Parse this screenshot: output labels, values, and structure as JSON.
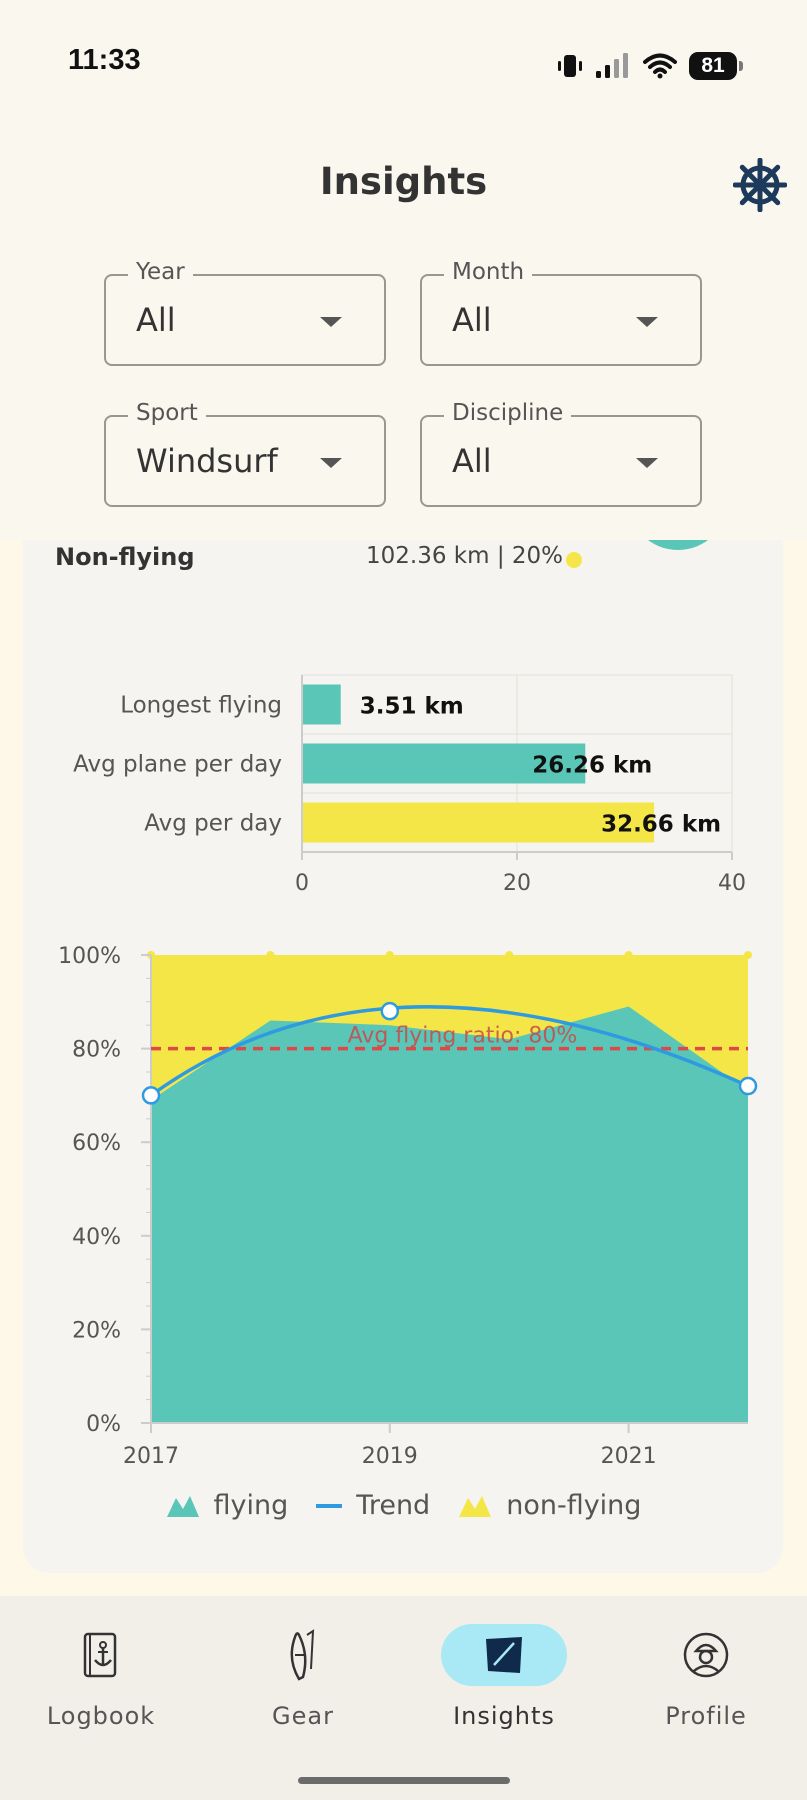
{
  "status_bar": {
    "time": "11:33",
    "battery": "81"
  },
  "header": {
    "title": "Insights",
    "settings_icon": "helm-icon"
  },
  "filters": [
    {
      "label": "Year",
      "value": "All"
    },
    {
      "label": "Month",
      "value": "All"
    },
    {
      "label": "Sport",
      "value": "Windsurf"
    },
    {
      "label": "Discipline",
      "value": "All"
    }
  ],
  "summary": {
    "nonflying_label": "Non-flying",
    "nonflying_value": "102.36 km | 20%"
  },
  "colors": {
    "flying": "#5AC6B8",
    "non_flying": "#F5E648",
    "trend": "#2E9BE0",
    "avg_line": "#E04848",
    "background": "#FAF8EE"
  },
  "chart_data": [
    {
      "type": "bar",
      "orientation": "horizontal",
      "categories": [
        "Longest flying",
        "Avg plane per day",
        "Avg per day"
      ],
      "values": [
        3.51,
        26.26,
        32.66
      ],
      "data_labels": [
        "3.51 km",
        "26.26 km",
        "32.66 km"
      ],
      "bar_colors": [
        "#5AC6B8",
        "#5AC6B8",
        "#F5E648"
      ],
      "xlim": [
        0,
        40
      ],
      "x_ticks": [
        "0",
        "20",
        "40"
      ],
      "grid": true
    },
    {
      "type": "area",
      "stacked": true,
      "x": [
        2017,
        2018,
        2019,
        2020,
        2021,
        2022
      ],
      "x_ticks": [
        "2017",
        "2019",
        "2021"
      ],
      "y_ticks": [
        "0%",
        "20%",
        "40%",
        "60%",
        "80%",
        "100%"
      ],
      "ylim": [
        0,
        100
      ],
      "series": [
        {
          "name": "flying",
          "values": [
            69,
            86,
            85,
            82,
            89,
            71
          ]
        },
        {
          "name": "non-flying",
          "values": [
            31,
            14,
            15,
            18,
            11,
            29
          ]
        }
      ],
      "trend": {
        "name": "Trend",
        "points": [
          [
            2017,
            70
          ],
          [
            2019,
            88
          ],
          [
            2022,
            72
          ]
        ]
      },
      "reference_line": {
        "value": 80,
        "label": "Avg flying ratio: 80%"
      },
      "legend": [
        "flying",
        "Trend",
        "non-flying"
      ],
      "legend_position": "bottom"
    }
  ],
  "nav": [
    {
      "label": "Logbook",
      "icon": "logbook-icon",
      "active": false
    },
    {
      "label": "Gear",
      "icon": "surfboard-icon",
      "active": false
    },
    {
      "label": "Insights",
      "icon": "insights-icon",
      "active": true
    },
    {
      "label": "Profile",
      "icon": "profile-icon",
      "active": false
    }
  ]
}
